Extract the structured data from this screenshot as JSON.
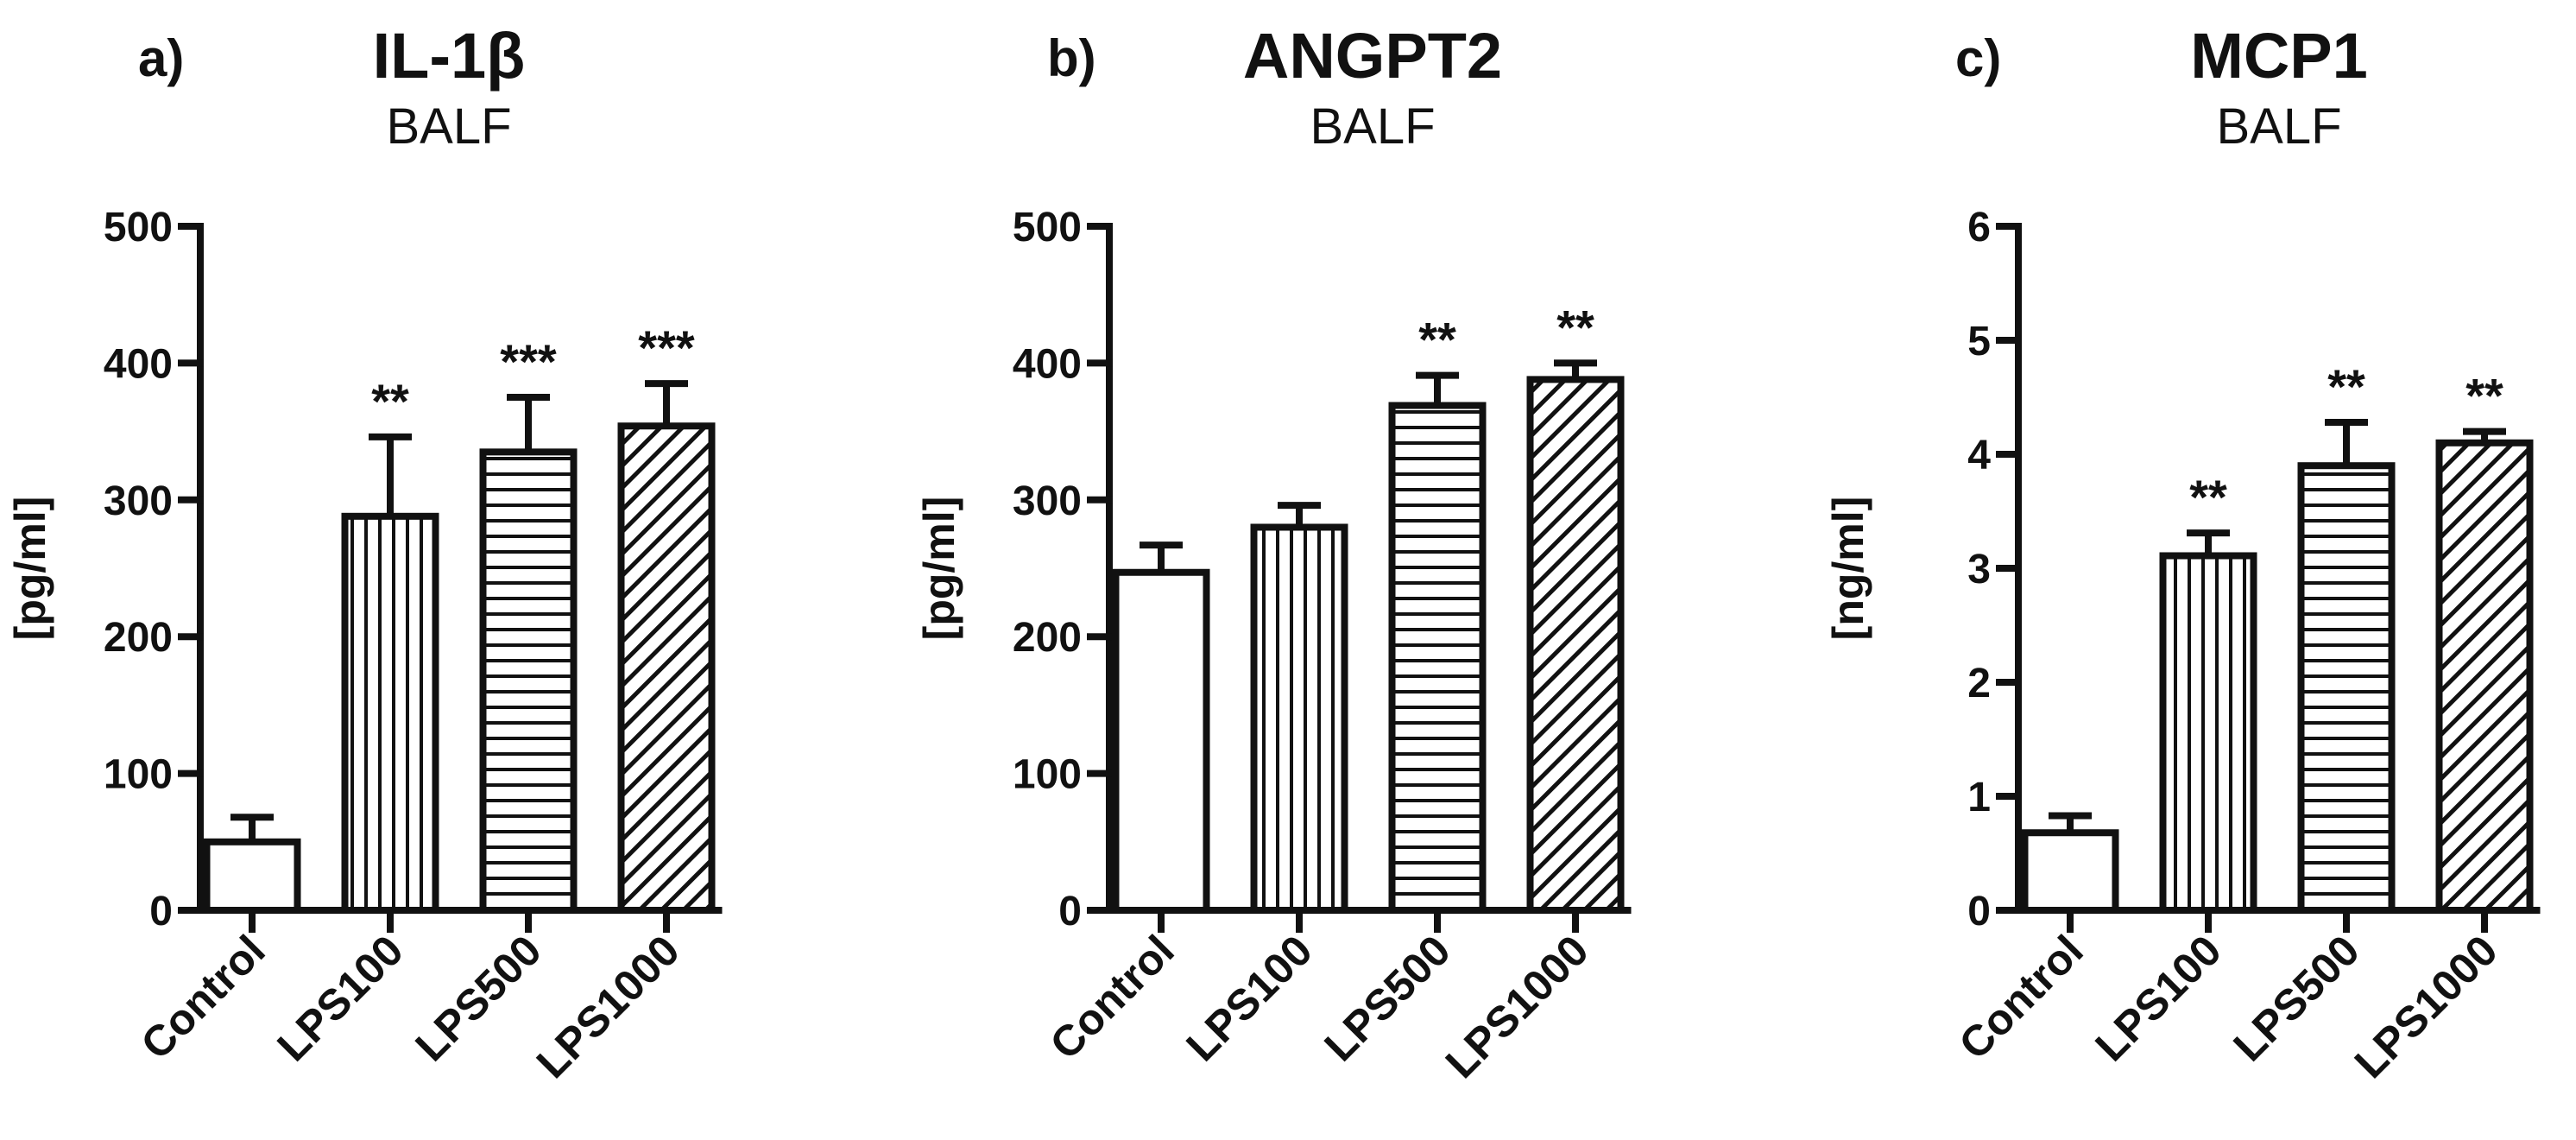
{
  "figure": {
    "background": "#ffffff",
    "ink_color": "#111111"
  },
  "chart_data": [
    {
      "type": "bar",
      "panel_label": "a)",
      "title": "IL-1β",
      "subtitle": "BALF",
      "xlabel": "",
      "ylabel": "[pg/ml]",
      "ylim": [
        0,
        500
      ],
      "yticks": [
        "0",
        "100",
        "200",
        "300",
        "400",
        "500"
      ],
      "categories": [
        "Control",
        "LPS100",
        "LPS500",
        "LPS1000"
      ],
      "values": [
        50,
        288,
        335,
        354
      ],
      "error": [
        18,
        58,
        40,
        31
      ],
      "significance": [
        "",
        "**",
        "***",
        "***"
      ],
      "fill_patterns": [
        "none",
        "vertical",
        "horizontal",
        "diagonal"
      ],
      "grid": false,
      "legend": "none"
    },
    {
      "type": "bar",
      "panel_label": "b)",
      "title": "ANGPT2",
      "subtitle": "BALF",
      "xlabel": "",
      "ylabel": "[pg/ml]",
      "ylim": [
        0,
        500
      ],
      "yticks": [
        "0",
        "100",
        "200",
        "300",
        "400",
        "500"
      ],
      "categories": [
        "Control",
        "LPS100",
        "LPS500",
        "LPS1000"
      ],
      "values": [
        247,
        280,
        369,
        388
      ],
      "error": [
        20,
        16,
        22,
        12
      ],
      "significance": [
        "",
        "",
        "**",
        "**"
      ],
      "fill_patterns": [
        "none",
        "vertical",
        "horizontal",
        "diagonal"
      ],
      "grid": false,
      "legend": "none"
    },
    {
      "type": "bar",
      "panel_label": "c)",
      "title": "MCP1",
      "subtitle": "BALF",
      "xlabel": "",
      "ylabel": "[ng/ml]",
      "ylim": [
        0,
        6
      ],
      "yticks": [
        "0",
        "1",
        "2",
        "3",
        "4",
        "5",
        "6"
      ],
      "categories": [
        "Control",
        "LPS100",
        "LPS500",
        "LPS1000"
      ],
      "values": [
        0.68,
        3.11,
        3.9,
        4.1
      ],
      "error": [
        0.15,
        0.2,
        0.38,
        0.1
      ],
      "significance": [
        "",
        "**",
        "**",
        "**"
      ],
      "fill_patterns": [
        "none",
        "vertical",
        "horizontal",
        "diagonal"
      ],
      "grid": false,
      "legend": "none"
    }
  ]
}
